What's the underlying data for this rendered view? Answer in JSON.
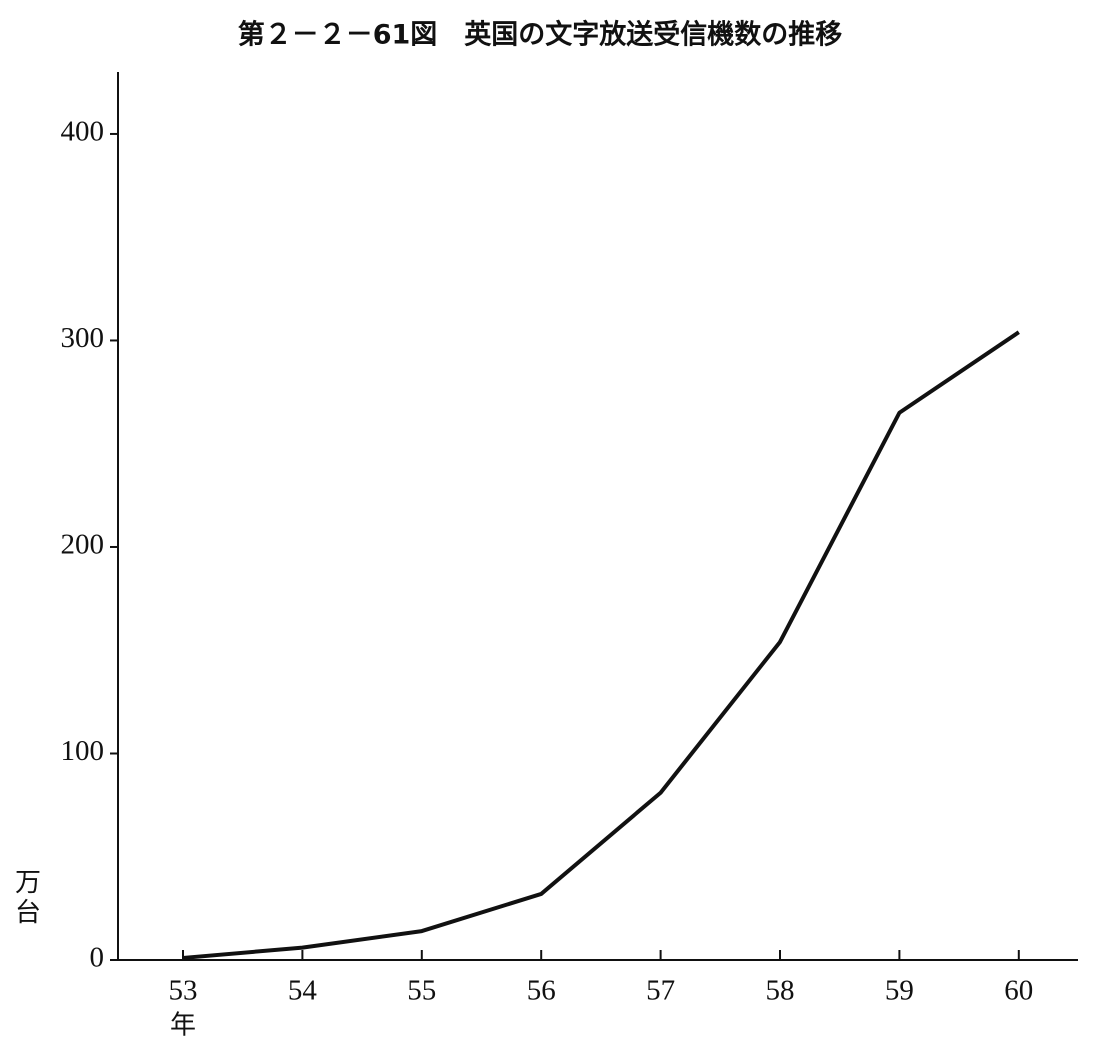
{
  "chart_data": {
    "type": "line",
    "title": "第２－２－61図　英国の文字放送受信機数の推移",
    "y_label": "万台",
    "x_label": "年",
    "categories": [
      "53",
      "54",
      "55",
      "56",
      "57",
      "58",
      "59",
      "60"
    ],
    "series": [
      {
        "color": "#111111",
        "values": [
          1,
          6,
          14,
          32,
          81,
          154,
          265,
          304
        ]
      }
    ],
    "ylim": [
      0,
      430
    ],
    "yticks": [
      0,
      100,
      200,
      300,
      400
    ],
    "grid": false
  }
}
